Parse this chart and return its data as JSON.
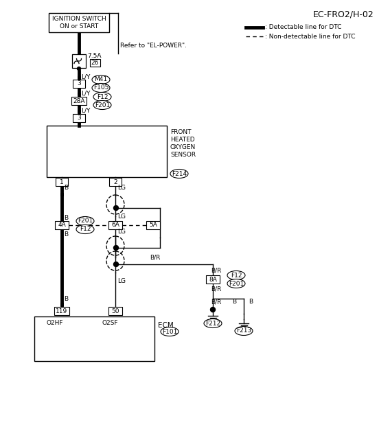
{
  "title": "EC-FRO2/H-02",
  "bg_color": "#ffffff",
  "thick_lw": 3.5,
  "thin_lw": 1.0,
  "dash_lw": 1.0,
  "fs": 6.5,
  "fs_med": 7.5,
  "legend_solid": ": Detectable line for DTC",
  "legend_dash": ": Non-detectable line for DTC",
  "refer": "Refer to \"EL-POWER\".",
  "ign_label": "IGNITION SWITCH\nON or START",
  "fuse_amp": "7.5A",
  "fuse_num": "26",
  "lbl_M41": "M41",
  "lbl_F105": "F105",
  "lbl_F12a": "F12",
  "lbl_F201a": "F201",
  "lbl_F214": "F214",
  "lbl_F201b": "F201",
  "lbl_F12b": "F12",
  "lbl_F12c": "F12",
  "lbl_F201c": "F201",
  "lbl_F101": "F101",
  "lbl_F212": "F212",
  "lbl_F213": "F213",
  "lbl_sensor": "FRONT\nHEATED\nOXYGEN\nSENSOR",
  "lbl_ecm": "ECM",
  "lbl_o2hf": "O2HF",
  "lbl_o2sf": "O2SF",
  "pin_3a": "3",
  "pin_28a": "28A",
  "pin_3b": "3",
  "pin_1": "1",
  "pin_2": "2",
  "pin_4a": "4A",
  "pin_6a": "6A",
  "pin_5a": "5A",
  "pin_119": "119",
  "pin_50": "50",
  "pin_8a": "8A",
  "w_LY": "L/Y",
  "w_B": "B",
  "w_LG": "LG",
  "w_BR": "B/R"
}
